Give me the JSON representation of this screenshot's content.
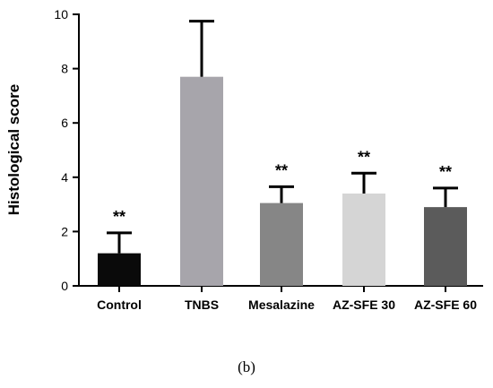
{
  "caption": "(b)",
  "chart_data": {
    "type": "bar",
    "title": "",
    "xlabel": "",
    "ylabel": "Histological score",
    "ylim": [
      0,
      10
    ],
    "yticks": [
      0,
      2,
      4,
      6,
      8,
      10
    ],
    "grid": false,
    "legend": "none",
    "categories": [
      "Control",
      "TNBS",
      "Mesalazine",
      "AZ-SFE 30",
      "AZ-SFE 60"
    ],
    "values": [
      1.2,
      7.7,
      3.05,
      3.4,
      2.9
    ],
    "error_upper": [
      0.75,
      2.05,
      0.6,
      0.75,
      0.7
    ],
    "significance": [
      "**",
      "",
      "**",
      "**",
      "**"
    ],
    "colors": [
      "#0a0a0a",
      "#a7a5ab",
      "#868686",
      "#d5d5d5",
      "#5b5b5b"
    ]
  }
}
